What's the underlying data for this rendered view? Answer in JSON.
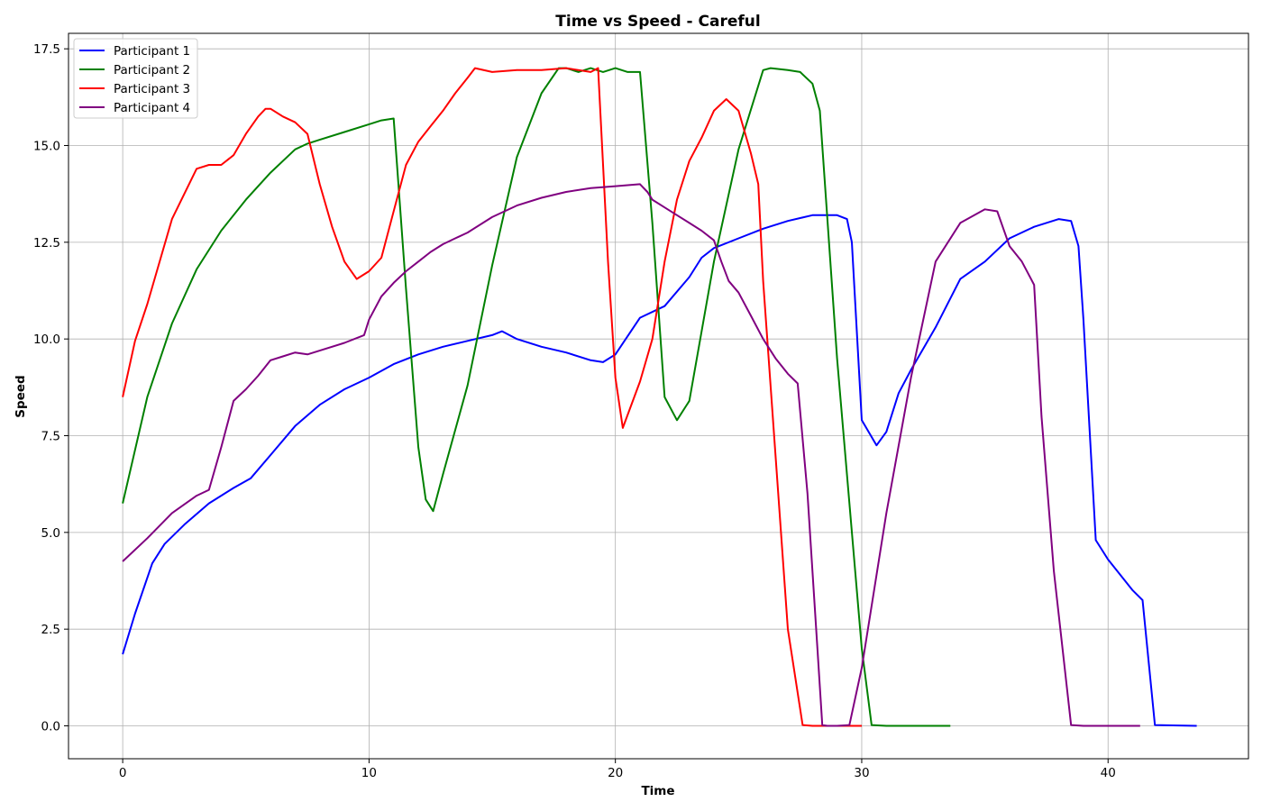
{
  "chart_data": {
    "type": "line",
    "title": "Time vs Speed - Careful",
    "xlabel": "Time",
    "ylabel": "Speed",
    "xlim": [
      -2.2,
      45.7
    ],
    "ylim": [
      -0.85,
      17.9
    ],
    "xticks": [
      0,
      10,
      20,
      30,
      40
    ],
    "yticks": [
      0.0,
      2.5,
      5.0,
      7.5,
      10.0,
      12.5,
      15.0,
      17.5
    ],
    "ytick_labels": [
      "0.0",
      "2.5",
      "5.0",
      "7.5",
      "10.0",
      "12.5",
      "15.0",
      "17.5"
    ],
    "grid": true,
    "legend_position": "top-left",
    "series": [
      {
        "name": "Participant 1",
        "color": "#0000ff",
        "x": [
          0,
          0.5,
          1.2,
          1.7,
          2.5,
          3.5,
          4.5,
          5.2,
          6,
          7,
          8,
          9,
          10,
          11,
          12,
          13,
          14,
          15,
          15.4,
          16,
          17,
          18,
          19,
          19.5,
          20,
          21,
          22,
          23,
          23.5,
          24,
          25,
          26,
          27,
          28,
          29,
          29.4,
          29.6,
          30,
          30.6,
          31,
          31.5,
          32,
          33,
          34,
          35,
          36,
          37,
          38,
          38.5,
          38.8,
          39,
          39.5,
          40,
          41,
          41.4,
          41.9,
          43.6
        ],
        "y": [
          1.85,
          2.9,
          4.2,
          4.7,
          5.2,
          5.75,
          6.15,
          6.4,
          7.0,
          7.75,
          8.3,
          8.7,
          9.0,
          9.35,
          9.6,
          9.8,
          9.95,
          10.1,
          10.2,
          10.0,
          9.8,
          9.65,
          9.45,
          9.4,
          9.6,
          10.55,
          10.85,
          11.6,
          12.1,
          12.35,
          12.6,
          12.85,
          13.05,
          13.2,
          13.2,
          13.1,
          12.5,
          7.9,
          7.25,
          7.6,
          8.6,
          9.2,
          10.3,
          11.55,
          12.0,
          12.6,
          12.9,
          13.1,
          13.05,
          12.4,
          10.5,
          4.8,
          4.3,
          3.5,
          3.25,
          0.02,
          0.0
        ]
      },
      {
        "name": "Participant 2",
        "color": "#008000",
        "x": [
          0,
          1,
          2,
          3,
          4,
          5,
          6,
          7,
          7.5,
          8,
          9,
          10,
          10.5,
          11,
          11.5,
          12,
          12.3,
          12.6,
          13,
          14,
          15,
          16,
          17,
          17.7,
          18,
          18.5,
          19,
          19.5,
          20,
          20.5,
          21,
          21.5,
          22,
          22.5,
          23,
          24,
          25,
          26,
          26.3,
          27,
          27.5,
          28,
          28.3,
          29,
          30,
          30.4,
          31,
          33.6
        ],
        "y": [
          5.75,
          8.5,
          10.4,
          11.8,
          12.8,
          13.6,
          14.3,
          14.9,
          15.05,
          15.15,
          15.35,
          15.55,
          15.65,
          15.7,
          11.3,
          7.2,
          5.85,
          5.55,
          6.5,
          8.8,
          11.9,
          14.7,
          16.35,
          17.0,
          17.0,
          16.9,
          17.0,
          16.9,
          17.0,
          16.9,
          16.9,
          13.0,
          8.5,
          7.9,
          8.4,
          12.0,
          14.9,
          16.95,
          17.0,
          16.95,
          16.9,
          16.6,
          15.9,
          9.5,
          2.0,
          0.02,
          0.0,
          0.0
        ]
      },
      {
        "name": "Participant 3",
        "color": "#ff0000",
        "x": [
          0,
          0.5,
          1,
          2,
          3,
          3.5,
          4,
          4.5,
          5,
          5.5,
          5.8,
          6,
          6.5,
          7,
          7.5,
          8,
          8.5,
          9,
          9.5,
          10,
          10.5,
          11,
          11.5,
          12,
          12.5,
          13,
          13.5,
          14,
          14.3,
          15,
          16,
          17,
          18,
          19,
          19.3,
          19.7,
          20,
          20.3,
          21,
          21.5,
          22,
          22.5,
          23,
          23.5,
          24,
          24.5,
          25,
          25.5,
          25.8,
          26,
          27,
          27.6,
          28,
          30
        ],
        "y": [
          8.5,
          9.95,
          10.9,
          13.1,
          14.4,
          14.5,
          14.5,
          14.75,
          15.3,
          15.75,
          15.95,
          15.95,
          15.75,
          15.6,
          15.3,
          14.0,
          12.9,
          12.0,
          11.55,
          11.75,
          12.1,
          13.3,
          14.5,
          15.1,
          15.5,
          15.9,
          16.35,
          16.75,
          17.0,
          16.9,
          16.95,
          16.95,
          17.0,
          16.9,
          17.0,
          12.0,
          9.0,
          7.7,
          8.9,
          10.0,
          12.0,
          13.6,
          14.6,
          15.2,
          15.9,
          16.2,
          15.9,
          14.8,
          14.0,
          11.5,
          2.5,
          0.02,
          0.0,
          0.0
        ]
      },
      {
        "name": "Participant 4",
        "color": "#800080",
        "x": [
          0,
          1,
          2,
          3,
          3.5,
          4,
          4.5,
          5,
          5.5,
          6,
          6.5,
          7,
          7.5,
          8,
          9,
          9.8,
          10,
          10.5,
          11,
          11.5,
          12,
          12.5,
          13,
          13.5,
          14,
          15,
          16,
          17,
          18,
          19,
          20,
          21,
          21.3,
          21.5,
          22,
          22.5,
          23,
          23.5,
          24,
          24.3,
          24.6,
          25,
          25.5,
          26,
          26.5,
          27,
          27.4,
          27.8,
          28,
          28.2,
          28.4,
          28.6,
          29,
          29.5,
          30,
          31,
          32,
          33,
          34,
          35,
          35.5,
          36,
          36.5,
          37,
          37.3,
          37.8,
          38.5,
          39,
          41.3
        ],
        "y": [
          4.25,
          4.85,
          5.5,
          5.95,
          6.1,
          7.2,
          8.4,
          8.7,
          9.05,
          9.45,
          9.55,
          9.65,
          9.6,
          9.7,
          9.9,
          10.1,
          10.5,
          11.1,
          11.45,
          11.75,
          12.0,
          12.25,
          12.45,
          12.6,
          12.75,
          13.15,
          13.45,
          13.65,
          13.8,
          13.9,
          13.95,
          14.0,
          13.8,
          13.6,
          13.4,
          13.2,
          13.0,
          12.8,
          12.55,
          12.0,
          11.5,
          11.2,
          10.6,
          10.0,
          9.5,
          9.1,
          8.85,
          6.0,
          4.0,
          2.0,
          0.02,
          0.0,
          0.0,
          0.02,
          1.5,
          5.5,
          9.0,
          12.0,
          13.0,
          13.35,
          13.3,
          12.4,
          12.0,
          11.4,
          8.0,
          4.0,
          0.02,
          0.0,
          0.0
        ]
      }
    ]
  }
}
